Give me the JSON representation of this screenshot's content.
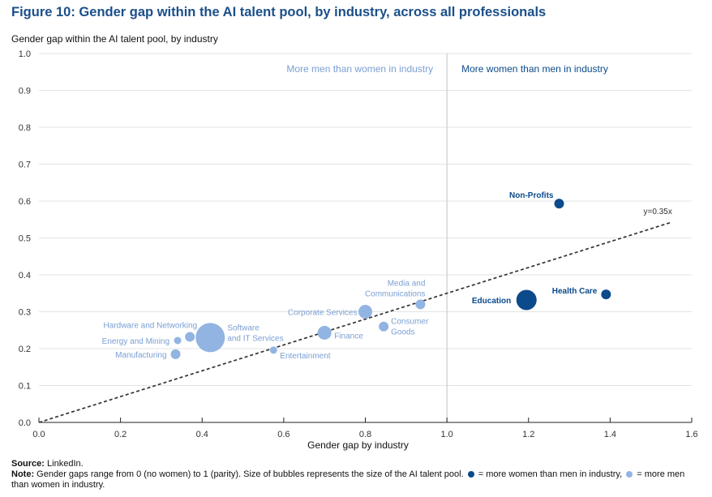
{
  "figure_title": "Figure 10: Gender gap within the AI talent pool, by industry, across all professionals",
  "colors": {
    "dark": "#0b4a8b",
    "light": "#92b4e2",
    "light_text": "#7b9fd2",
    "title": "#1b4f8a"
  },
  "chart_data": {
    "type": "scatter",
    "title": "Gender gap within the AI talent pool, by industry",
    "xlabel": "Gender gap by industry",
    "ylabel": "",
    "xlim": [
      0,
      1.6
    ],
    "ylim": [
      0,
      1.0
    ],
    "x_ticks": [
      "0.0",
      "0.2",
      "0.4",
      "0.6",
      "0.8",
      "1.0",
      "1.2",
      "1.4",
      "1.6"
    ],
    "y_ticks": [
      "0.0",
      "0.1",
      "0.2",
      "0.3",
      "0.4",
      "0.5",
      "0.6",
      "0.7",
      "0.8",
      "0.9",
      "1.0"
    ],
    "grid": true,
    "divider_x": 1.0,
    "region_labels": {
      "left": "More men than women in industry",
      "right": "More women than men in industry"
    },
    "trendline": {
      "label": "y=0.35x",
      "slope": 0.35,
      "x_end": 1.55
    },
    "points": [
      {
        "label": "Manufacturing",
        "x": 0.335,
        "y": 0.185,
        "size": "small",
        "group": "light"
      },
      {
        "label": "Energy and Mining",
        "x": 0.34,
        "y": 0.222,
        "size": "tiny",
        "group": "light"
      },
      {
        "label": "Hardware and Networking",
        "x": 0.37,
        "y": 0.232,
        "size": "small",
        "group": "light"
      },
      {
        "label": "Software and IT Services",
        "x": 0.42,
        "y": 0.23,
        "size": "huge",
        "group": "light"
      },
      {
        "label": "Entertainment",
        "x": 0.575,
        "y": 0.196,
        "size": "tiny",
        "group": "light"
      },
      {
        "label": "Finance",
        "x": 0.7,
        "y": 0.243,
        "size": "medium",
        "group": "light"
      },
      {
        "label": "Corporate Services",
        "x": 0.8,
        "y": 0.3,
        "size": "medium",
        "group": "light"
      },
      {
        "label": "Consumer Goods",
        "x": 0.845,
        "y": 0.26,
        "size": "small",
        "group": "light"
      },
      {
        "label": "Media and Communications",
        "x": 0.935,
        "y": 0.32,
        "size": "small",
        "group": "light"
      },
      {
        "label": "Education",
        "x": 1.195,
        "y": 0.332,
        "size": "large",
        "group": "dark"
      },
      {
        "label": "Non-Profits",
        "x": 1.275,
        "y": 0.593,
        "size": "small",
        "group": "dark"
      },
      {
        "label": "Health Care",
        "x": 1.39,
        "y": 0.347,
        "size": "small",
        "group": "dark"
      }
    ]
  },
  "footer": {
    "source_label": "Source:",
    "source_text": " LinkedIn.",
    "note_label": "Note:",
    "note_text_1": " Gender gaps range from 0 (no women) to 1 (parity). Size of bubbles represents the size of the AI talent pool. ",
    "note_text_2": " = more women than men in industry, ",
    "note_text_3": " = more men than women in industry."
  }
}
